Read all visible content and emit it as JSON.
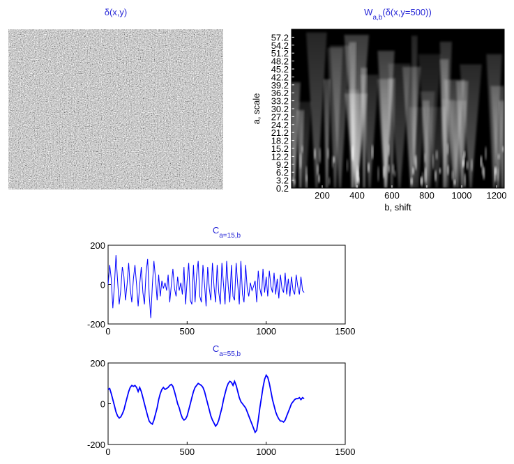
{
  "chart_data": [
    {
      "type": "image",
      "title": [
        "δ(x,y)"
      ]
    },
    {
      "type": "heatmap",
      "title": [
        "W",
        "a,b",
        "(δ(x,y=500))"
      ],
      "xlabel": "b, shift",
      "ylabel": "a, scale",
      "xlim": [
        24,
        1244
      ],
      "xticks": [
        200,
        400,
        600,
        800,
        1000,
        1200
      ],
      "ylim": [
        0.2,
        60.2
      ],
      "yticks": [
        0.2,
        3.2,
        6.2,
        9.2,
        12.2,
        15.2,
        18.2,
        21.2,
        24.2,
        27.2,
        30.2,
        33.2,
        36.2,
        39.2,
        42.2,
        45.2,
        48.2,
        51.2,
        54.2,
        57.2
      ]
    },
    {
      "type": "line",
      "title": [
        "C",
        "a=15,b"
      ],
      "color": "#0000ff",
      "xlim": [
        0,
        1500
      ],
      "xticks": [
        0,
        500,
        1000,
        1500
      ],
      "ylim": [
        -200,
        200
      ],
      "yticks": [
        -200,
        0,
        200
      ],
      "x": [
        0,
        10,
        20,
        30,
        40,
        50,
        60,
        70,
        80,
        90,
        100,
        110,
        120,
        130,
        140,
        150,
        160,
        170,
        180,
        190,
        200,
        210,
        220,
        230,
        240,
        250,
        260,
        270,
        280,
        290,
        300,
        310,
        320,
        330,
        340,
        350,
        360,
        370,
        380,
        390,
        400,
        410,
        420,
        430,
        440,
        450,
        460,
        470,
        480,
        490,
        500,
        510,
        520,
        530,
        540,
        550,
        560,
        570,
        580,
        590,
        600,
        610,
        620,
        630,
        640,
        650,
        660,
        670,
        680,
        690,
        700,
        710,
        720,
        730,
        740,
        750,
        760,
        770,
        780,
        790,
        800,
        810,
        820,
        830,
        840,
        850,
        860,
        870,
        880,
        890,
        900,
        910,
        920,
        930,
        940,
        950,
        960,
        970,
        980,
        990,
        1000,
        1010,
        1020,
        1030,
        1040,
        1050,
        1060,
        1070,
        1080,
        1090,
        1100,
        1110,
        1120,
        1130,
        1140,
        1150,
        1160,
        1170,
        1180,
        1190,
        1200,
        1210,
        1220,
        1230,
        1240
      ],
      "values": [
        0,
        100,
        30,
        -120,
        0,
        150,
        20,
        -100,
        -30,
        90,
        40,
        -80,
        0,
        110,
        -20,
        -90,
        30,
        100,
        0,
        -110,
        0,
        90,
        -40,
        -100,
        60,
        130,
        -50,
        -170,
        0,
        120,
        30,
        -80,
        50,
        -60,
        20,
        -20,
        10,
        -30,
        50,
        -90,
        0,
        80,
        -20,
        -60,
        40,
        -30,
        10,
        -50,
        90,
        -100,
        20,
        110,
        -80,
        -100,
        100,
        -90,
        50,
        120,
        -60,
        -90,
        100,
        0,
        -110,
        90,
        -20,
        -80,
        110,
        -10,
        -90,
        100,
        -40,
        -100,
        110,
        0,
        -100,
        120,
        -10,
        -90,
        100,
        -60,
        -80,
        110,
        0,
        -100,
        120,
        -50,
        -90,
        100,
        -20,
        -60,
        10,
        -30,
        -10,
        20,
        -90,
        70,
        -20,
        -60,
        80,
        -40,
        40,
        -60,
        70,
        -10,
        -40,
        60,
        -50,
        30,
        -70,
        50,
        -20,
        -40,
        60,
        -50,
        30,
        -60,
        40,
        -30,
        -50,
        50,
        -10,
        -50,
        40,
        -30,
        -40
      ]
    },
    {
      "type": "line",
      "title": [
        "C",
        "a=55,b"
      ],
      "color": "#0000ff",
      "xlim": [
        0,
        1500
      ],
      "xticks": [
        0,
        500,
        1000,
        1500
      ],
      "ylim": [
        -200,
        200
      ],
      "yticks": [
        -200,
        0,
        200
      ],
      "x": [
        0,
        10,
        20,
        30,
        40,
        50,
        60,
        70,
        80,
        90,
        100,
        110,
        120,
        130,
        140,
        150,
        160,
        170,
        180,
        190,
        200,
        210,
        220,
        230,
        240,
        250,
        260,
        270,
        280,
        290,
        300,
        310,
        320,
        330,
        340,
        350,
        360,
        370,
        380,
        390,
        400,
        410,
        420,
        430,
        440,
        450,
        460,
        470,
        480,
        490,
        500,
        510,
        520,
        530,
        540,
        550,
        560,
        570,
        580,
        590,
        600,
        610,
        620,
        630,
        640,
        650,
        660,
        670,
        680,
        690,
        700,
        710,
        720,
        730,
        740,
        750,
        760,
        770,
        780,
        790,
        800,
        810,
        820,
        830,
        840,
        850,
        860,
        870,
        880,
        890,
        900,
        910,
        920,
        930,
        940,
        950,
        960,
        970,
        980,
        990,
        1000,
        1010,
        1020,
        1030,
        1040,
        1050,
        1060,
        1070,
        1080,
        1090,
        1100,
        1110,
        1120,
        1130,
        1140,
        1150,
        1160,
        1170,
        1180,
        1190,
        1200,
        1210,
        1220,
        1230,
        1240
      ],
      "values": [
        70,
        75,
        50,
        20,
        -10,
        -40,
        -60,
        -70,
        -65,
        -50,
        -30,
        0,
        30,
        60,
        80,
        90,
        85,
        90,
        80,
        60,
        80,
        60,
        30,
        0,
        -30,
        -60,
        -85,
        -95,
        -100,
        -80,
        -50,
        -20,
        20,
        50,
        70,
        80,
        70,
        75,
        80,
        90,
        95,
        85,
        60,
        30,
        0,
        -20,
        -50,
        -70,
        -80,
        -75,
        -60,
        -30,
        0,
        30,
        60,
        80,
        90,
        100,
        95,
        90,
        80,
        60,
        30,
        0,
        -30,
        -60,
        -80,
        -95,
        -110,
        -100,
        -80,
        -50,
        -20,
        20,
        50,
        80,
        100,
        110,
        105,
        90,
        110,
        90,
        60,
        30,
        10,
        0,
        -10,
        -20,
        -40,
        -60,
        -80,
        -100,
        -120,
        -140,
        -130,
        -80,
        -20,
        30,
        80,
        120,
        140,
        130,
        100,
        60,
        20,
        -10,
        -40,
        -60,
        -75,
        -85,
        -85,
        -90,
        -80,
        -60,
        -40,
        -20,
        0,
        10,
        20,
        25,
        25,
        30,
        20,
        30,
        25
      ]
    }
  ]
}
